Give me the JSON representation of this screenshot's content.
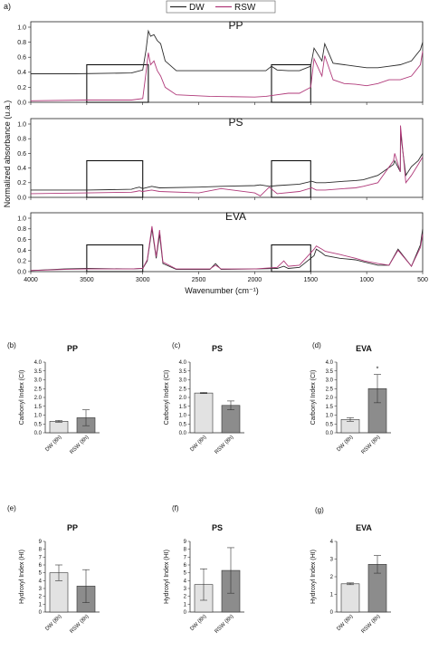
{
  "figure": {
    "panel_a_label": "a)",
    "shared_ylabel": "Normalized absorbance (u.a.)",
    "xlabel": "Wavenumber (cm⁻¹)",
    "legend": [
      "DW",
      "RSW"
    ],
    "colors": {
      "DW": "#2b2b2b",
      "RSW": "#b03a7a",
      "bar_light": "#e2e2e2",
      "bar_dark": "#8c8c8c"
    }
  },
  "chart_data": [
    {
      "panel": "a",
      "type": "line",
      "title": "PP",
      "xlim": [
        4000,
        500
      ],
      "ylim": [
        0,
        1.0
      ],
      "xticks": [
        4000,
        3500,
        3000,
        2500,
        2000,
        1500,
        1000,
        500
      ],
      "yticks": [
        0.0,
        0.2,
        0.4,
        0.6,
        0.8,
        1.0
      ],
      "series": [
        {
          "name": "DW",
          "x": [
            4000,
            3600,
            3100,
            3000,
            2970,
            2950,
            2930,
            2900,
            2870,
            2840,
            2800,
            2700,
            2400,
            2000,
            1900,
            1850,
            1800,
            1700,
            1600,
            1500,
            1470,
            1400,
            1375,
            1300,
            1200,
            1100,
            1000,
            900,
            800,
            700,
            600,
            520,
            500
          ],
          "y": [
            0.38,
            0.38,
            0.39,
            0.43,
            0.7,
            0.95,
            0.88,
            0.9,
            0.82,
            0.78,
            0.55,
            0.42,
            0.42,
            0.42,
            0.42,
            0.48,
            0.43,
            0.42,
            0.42,
            0.48,
            0.72,
            0.55,
            0.78,
            0.52,
            0.5,
            0.48,
            0.46,
            0.46,
            0.48,
            0.5,
            0.55,
            0.7,
            0.8
          ]
        },
        {
          "name": "RSW",
          "x": [
            4000,
            3500,
            3100,
            3000,
            2970,
            2950,
            2930,
            2900,
            2870,
            2840,
            2800,
            2700,
            2400,
            2000,
            1900,
            1800,
            1700,
            1600,
            1500,
            1470,
            1400,
            1375,
            1300,
            1200,
            1100,
            1000,
            900,
            800,
            700,
            600,
            520,
            500
          ],
          "y": [
            0.02,
            0.03,
            0.03,
            0.05,
            0.4,
            0.66,
            0.5,
            0.55,
            0.42,
            0.35,
            0.2,
            0.1,
            0.08,
            0.07,
            0.08,
            0.1,
            0.12,
            0.12,
            0.2,
            0.58,
            0.35,
            0.62,
            0.3,
            0.25,
            0.24,
            0.22,
            0.25,
            0.3,
            0.3,
            0.35,
            0.5,
            0.68
          ]
        }
      ],
      "highlight_ranges": [
        [
          3500,
          2950
        ],
        [
          1850,
          1500
        ]
      ]
    },
    {
      "panel": "a",
      "type": "line",
      "title": "PS",
      "xlim": [
        4000,
        500
      ],
      "ylim": [
        0,
        1.0
      ],
      "xticks": [
        4000,
        3500,
        3000,
        2500,
        2000,
        1500,
        1000,
        500
      ],
      "yticks": [
        0.0,
        0.2,
        0.4,
        0.6,
        0.8,
        1.0
      ],
      "series": [
        {
          "name": "DW",
          "x": [
            4000,
            3500,
            3100,
            3060,
            3030,
            3000,
            2920,
            2850,
            2500,
            2300,
            2000,
            1950,
            1870,
            1800,
            1600,
            1490,
            1450,
            1370,
            1200,
            1100,
            1030,
            900,
            760,
            750,
            700,
            698,
            650,
            600,
            540,
            500
          ],
          "y": [
            0.1,
            0.1,
            0.11,
            0.13,
            0.14,
            0.12,
            0.15,
            0.13,
            0.14,
            0.15,
            0.16,
            0.17,
            0.15,
            0.16,
            0.18,
            0.22,
            0.2,
            0.2,
            0.22,
            0.23,
            0.24,
            0.3,
            0.45,
            0.5,
            0.35,
            0.88,
            0.3,
            0.42,
            0.5,
            0.6
          ]
        },
        {
          "name": "RSW",
          "x": [
            4000,
            3500,
            3100,
            3060,
            3030,
            3000,
            2920,
            2850,
            2500,
            2300,
            2000,
            1950,
            1870,
            1800,
            1600,
            1490,
            1450,
            1370,
            1200,
            1100,
            1030,
            900,
            760,
            750,
            700,
            698,
            650,
            600,
            540,
            500
          ],
          "y": [
            0.05,
            0.06,
            0.07,
            0.08,
            0.09,
            0.08,
            0.1,
            0.08,
            0.06,
            0.12,
            0.06,
            0.02,
            0.14,
            0.05,
            0.08,
            0.13,
            0.1,
            0.1,
            0.12,
            0.13,
            0.15,
            0.2,
            0.5,
            0.6,
            0.35,
            0.98,
            0.2,
            0.3,
            0.45,
            0.55
          ]
        }
      ],
      "highlight_ranges": [
        [
          3500,
          3000
        ],
        [
          1850,
          1500
        ]
      ]
    },
    {
      "panel": "a",
      "type": "line",
      "title": "EVA",
      "xlim": [
        4000,
        500
      ],
      "ylim": [
        0,
        1.0
      ],
      "xticks": [
        4000,
        3500,
        3000,
        2500,
        2000,
        1500,
        1000,
        500
      ],
      "yticks": [
        0.0,
        0.2,
        0.4,
        0.6,
        0.8,
        1.0
      ],
      "series": [
        {
          "name": "DW",
          "x": [
            4000,
            3700,
            3500,
            3100,
            3000,
            2960,
            2918,
            2880,
            2850,
            2820,
            2700,
            2400,
            2350,
            2300,
            2000,
            1800,
            1740,
            1700,
            1600,
            1470,
            1450,
            1400,
            1370,
            1240,
            1100,
            1020,
            900,
            800,
            720,
            600,
            520,
            500
          ],
          "y": [
            0.02,
            0.05,
            0.06,
            0.05,
            0.06,
            0.2,
            0.8,
            0.25,
            0.7,
            0.15,
            0.04,
            0.04,
            0.15,
            0.04,
            0.05,
            0.06,
            0.1,
            0.06,
            0.08,
            0.3,
            0.42,
            0.35,
            0.3,
            0.25,
            0.22,
            0.18,
            0.12,
            0.12,
            0.42,
            0.1,
            0.5,
            0.8
          ]
        },
        {
          "name": "RSW",
          "x": [
            4000,
            3700,
            3500,
            3100,
            3000,
            2960,
            2918,
            2880,
            2850,
            2820,
            2700,
            2400,
            2350,
            2300,
            2000,
            1800,
            1740,
            1700,
            1600,
            1470,
            1450,
            1400,
            1370,
            1240,
            1100,
            1020,
            900,
            800,
            720,
            600,
            520,
            500
          ],
          "y": [
            0.02,
            0.04,
            0.05,
            0.05,
            0.06,
            0.22,
            0.85,
            0.28,
            0.78,
            0.18,
            0.05,
            0.05,
            0.12,
            0.05,
            0.05,
            0.08,
            0.2,
            0.1,
            0.12,
            0.42,
            0.48,
            0.42,
            0.38,
            0.32,
            0.25,
            0.2,
            0.15,
            0.12,
            0.4,
            0.1,
            0.45,
            0.7
          ]
        }
      ],
      "highlight_ranges": [
        [
          3500,
          3000
        ],
        [
          1850,
          1500
        ]
      ]
    },
    {
      "panel": "b",
      "type": "bar",
      "title": "PP",
      "ylabel": "Carbonyl Index (CI)",
      "categories": [
        "DW (8h)",
        "RSW (8h)"
      ],
      "values": [
        0.65,
        0.85
      ],
      "errors": [
        0.05,
        0.45
      ],
      "ylim": [
        0,
        4.0
      ],
      "yticks": [
        0,
        0.5,
        1.0,
        1.5,
        2.0,
        2.5,
        3.0,
        3.5,
        4.0
      ],
      "significance": []
    },
    {
      "panel": "c",
      "type": "bar",
      "title": "PS",
      "ylabel": "Carbonyl Index (CI)",
      "categories": [
        "DW (8h)",
        "RSW (8h)"
      ],
      "values": [
        2.25,
        1.55
      ],
      "errors": [
        0.03,
        0.25
      ],
      "ylim": [
        0,
        4.0
      ],
      "yticks": [
        0,
        0.5,
        1.0,
        1.5,
        2.0,
        2.5,
        3.0,
        3.5,
        4.0
      ],
      "significance": []
    },
    {
      "panel": "d",
      "type": "bar",
      "title": "EVA",
      "ylabel": "Carbonyl Index (CI)",
      "categories": [
        "DW (8h)",
        "RSW (8h)"
      ],
      "values": [
        0.75,
        2.5
      ],
      "errors": [
        0.1,
        0.8
      ],
      "ylim": [
        0,
        4.0
      ],
      "yticks": [
        0,
        0.5,
        1.0,
        1.5,
        2.0,
        2.5,
        3.0,
        3.5,
        4.0
      ],
      "significance": [
        "",
        "*"
      ]
    },
    {
      "panel": "e",
      "type": "bar",
      "title": "PP",
      "ylabel": "Hydroxyl Index (HI)",
      "categories": [
        "DW (8h)",
        "RSW (8h)"
      ],
      "values": [
        5.0,
        3.3
      ],
      "errors": [
        1.0,
        2.1
      ],
      "ylim": [
        0,
        9
      ],
      "yticks": [
        0,
        1,
        2,
        3,
        4,
        5,
        6,
        7,
        8,
        9
      ],
      "significance": []
    },
    {
      "panel": "f",
      "type": "bar",
      "title": "PS",
      "ylabel": "Hydroxyl Index (HI)",
      "categories": [
        "DW (8h)",
        "RSW (8h)"
      ],
      "values": [
        3.5,
        5.3
      ],
      "errors": [
        2.0,
        2.9
      ],
      "ylim": [
        0,
        9
      ],
      "yticks": [
        0,
        1,
        2,
        3,
        4,
        5,
        6,
        7,
        8,
        9
      ],
      "significance": []
    },
    {
      "panel": "g",
      "type": "bar",
      "title": "EVA",
      "ylabel": "Hydroxyl Index (HI)",
      "categories": [
        "DW (8h)",
        "RSW (8h)"
      ],
      "values": [
        1.6,
        2.7
      ],
      "errors": [
        0.05,
        0.5
      ],
      "ylim": [
        0,
        4
      ],
      "yticks": [
        0,
        1,
        2,
        3,
        4
      ],
      "significance": []
    }
  ]
}
